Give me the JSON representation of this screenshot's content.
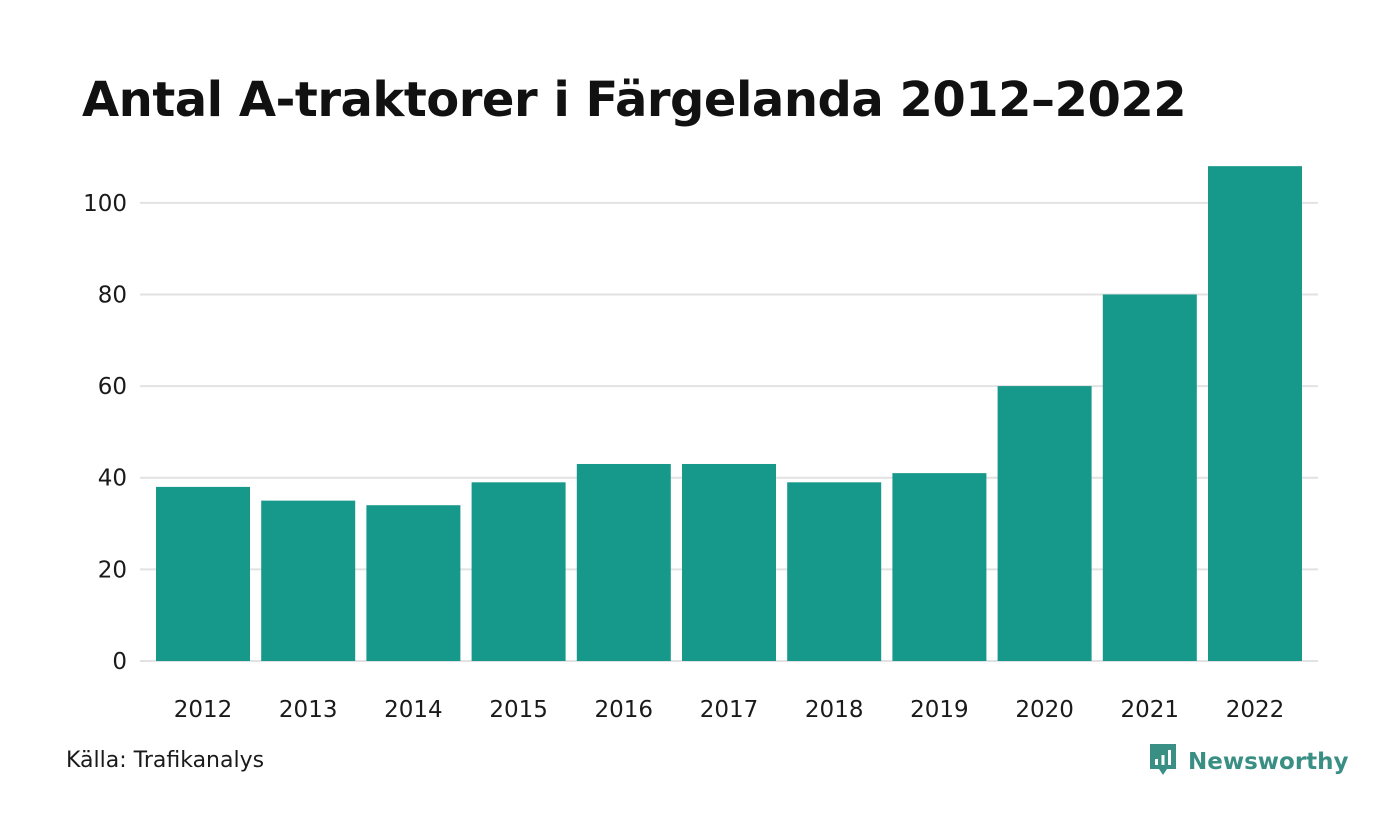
{
  "title": "Antal A-traktorer i Färgelanda 2012–2022",
  "source": "Källa: Trafikanalys",
  "brand": {
    "name": "Newsworthy",
    "icon": "newsworthy-logo-icon",
    "color": "#3a8f85"
  },
  "colors": {
    "bar": "#16988a",
    "grid": "#e2e2e2"
  },
  "chart_data": {
    "type": "bar",
    "title": "Antal A-traktorer i Färgelanda 2012–2022",
    "xlabel": "",
    "ylabel": "",
    "categories": [
      "2012",
      "2013",
      "2014",
      "2015",
      "2016",
      "2017",
      "2018",
      "2019",
      "2020",
      "2021",
      "2022"
    ],
    "values": [
      38,
      35,
      34,
      39,
      43,
      43,
      39,
      41,
      60,
      80,
      108
    ],
    "ylim": [
      0,
      110
    ],
    "yticks": [
      0,
      20,
      40,
      60,
      80,
      100
    ],
    "grid": true,
    "legend": "none"
  }
}
